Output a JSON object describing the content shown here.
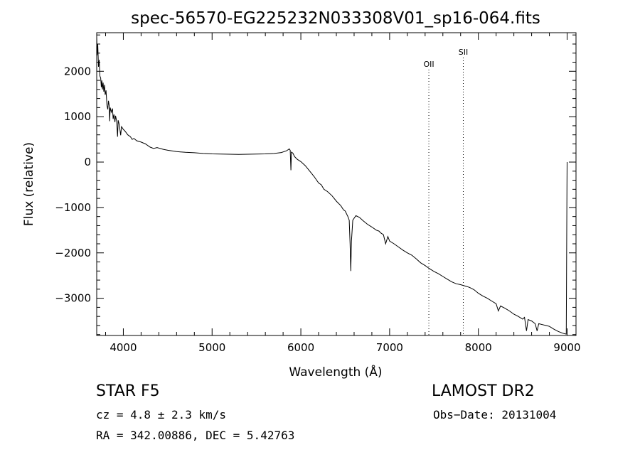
{
  "chart_data": {
    "type": "line",
    "title": "spec-56570-EG225232N033308V01_sp16-064.fits",
    "xlabel": "Wavelength (Å)",
    "ylabel": "Flux (relative)",
    "xlim": [
      3700,
      9100
    ],
    "ylim": [
      -3820,
      2850
    ],
    "xticks": [
      4000,
      5000,
      6000,
      7000,
      8000,
      9000
    ],
    "yticks": [
      -3000,
      -2000,
      -1000,
      0,
      1000,
      2000
    ],
    "xtick_labels": [
      "4000",
      "5000",
      "6000",
      "7000",
      "8000",
      "9000"
    ],
    "ytick_labels": [
      "−3000",
      "−2000",
      "−1000",
      "0",
      "1000",
      "2000"
    ],
    "grid": false,
    "line_color": "#000000",
    "series": [
      {
        "name": "",
        "points": [
          [
            3700,
            2780
          ],
          [
            3705,
            2350
          ],
          [
            3712,
            2600
          ],
          [
            3720,
            2100
          ],
          [
            3728,
            2250
          ],
          [
            3735,
            1900
          ],
          [
            3745,
            1850
          ],
          [
            3752,
            1650
          ],
          [
            3758,
            1800
          ],
          [
            3765,
            1600
          ],
          [
            3772,
            1750
          ],
          [
            3780,
            1550
          ],
          [
            3788,
            1700
          ],
          [
            3795,
            1480
          ],
          [
            3805,
            1580
          ],
          [
            3815,
            1250
          ],
          [
            3825,
            1160
          ],
          [
            3832,
            1350
          ],
          [
            3840,
            1250
          ],
          [
            3846,
            900
          ],
          [
            3852,
            1200
          ],
          [
            3865,
            1100
          ],
          [
            3878,
            1180
          ],
          [
            3885,
            950
          ],
          [
            3895,
            1050
          ],
          [
            3905,
            880
          ],
          [
            3912,
            1020
          ],
          [
            3925,
            900
          ],
          [
            3935,
            560
          ],
          [
            3942,
            920
          ],
          [
            3955,
            820
          ],
          [
            3970,
            590
          ],
          [
            3980,
            780
          ],
          [
            4000,
            720
          ],
          [
            4020,
            680
          ],
          [
            4050,
            600
          ],
          [
            4080,
            560
          ],
          [
            4100,
            500
          ],
          [
            4120,
            520
          ],
          [
            4150,
            470
          ],
          [
            4200,
            440
          ],
          [
            4250,
            400
          ],
          [
            4300,
            330
          ],
          [
            4340,
            300
          ],
          [
            4380,
            320
          ],
          [
            4450,
            280
          ],
          [
            4500,
            260
          ],
          [
            4600,
            230
          ],
          [
            4700,
            215
          ],
          [
            4800,
            205
          ],
          [
            4900,
            190
          ],
          [
            5000,
            180
          ],
          [
            5100,
            175
          ],
          [
            5200,
            172
          ],
          [
            5300,
            170
          ],
          [
            5400,
            172
          ],
          [
            5500,
            175
          ],
          [
            5600,
            180
          ],
          [
            5700,
            190
          ],
          [
            5780,
            210
          ],
          [
            5840,
            250
          ],
          [
            5870,
            290
          ],
          [
            5880,
            260
          ],
          [
            5888,
            -180
          ],
          [
            5894,
            220
          ],
          [
            5910,
            200
          ],
          [
            5930,
            120
          ],
          [
            5960,
            60
          ],
          [
            6000,
            10
          ],
          [
            6050,
            -80
          ],
          [
            6100,
            -200
          ],
          [
            6150,
            -320
          ],
          [
            6200,
            -460
          ],
          [
            6230,
            -500
          ],
          [
            6260,
            -600
          ],
          [
            6300,
            -650
          ],
          [
            6350,
            -740
          ],
          [
            6400,
            -860
          ],
          [
            6450,
            -960
          ],
          [
            6480,
            -1050
          ],
          [
            6500,
            -1080
          ],
          [
            6530,
            -1200
          ],
          [
            6545,
            -1280
          ],
          [
            6555,
            -1800
          ],
          [
            6563,
            -2400
          ],
          [
            6570,
            -1750
          ],
          [
            6585,
            -1280
          ],
          [
            6620,
            -1180
          ],
          [
            6660,
            -1220
          ],
          [
            6700,
            -1290
          ],
          [
            6750,
            -1370
          ],
          [
            6800,
            -1430
          ],
          [
            6850,
            -1500
          ],
          [
            6880,
            -1520
          ],
          [
            6900,
            -1560
          ],
          [
            6930,
            -1600
          ],
          [
            6955,
            -1800
          ],
          [
            6980,
            -1640
          ],
          [
            7000,
            -1740
          ],
          [
            7050,
            -1800
          ],
          [
            7100,
            -1870
          ],
          [
            7150,
            -1940
          ],
          [
            7200,
            -2000
          ],
          [
            7250,
            -2050
          ],
          [
            7300,
            -2130
          ],
          [
            7350,
            -2220
          ],
          [
            7400,
            -2280
          ],
          [
            7450,
            -2350
          ],
          [
            7500,
            -2410
          ],
          [
            7550,
            -2460
          ],
          [
            7600,
            -2520
          ],
          [
            7650,
            -2580
          ],
          [
            7700,
            -2640
          ],
          [
            7750,
            -2680
          ],
          [
            7800,
            -2700
          ],
          [
            7850,
            -2730
          ],
          [
            7900,
            -2760
          ],
          [
            7950,
            -2810
          ],
          [
            8000,
            -2890
          ],
          [
            8050,
            -2950
          ],
          [
            8100,
            -3000
          ],
          [
            8150,
            -3060
          ],
          [
            8200,
            -3120
          ],
          [
            8225,
            -3280
          ],
          [
            8250,
            -3170
          ],
          [
            8300,
            -3220
          ],
          [
            8350,
            -3280
          ],
          [
            8400,
            -3350
          ],
          [
            8450,
            -3400
          ],
          [
            8498,
            -3460
          ],
          [
            8520,
            -3420
          ],
          [
            8542,
            -3720
          ],
          [
            8560,
            -3470
          ],
          [
            8600,
            -3500
          ],
          [
            8640,
            -3560
          ],
          [
            8662,
            -3720
          ],
          [
            8680,
            -3560
          ],
          [
            8720,
            -3580
          ],
          [
            8760,
            -3600
          ],
          [
            8800,
            -3620
          ],
          [
            8850,
            -3680
          ],
          [
            8900,
            -3730
          ],
          [
            8950,
            -3770
          ],
          [
            8990,
            -3790
          ],
          [
            8998,
            -500
          ],
          [
            9000,
            0
          ]
        ]
      }
    ],
    "annotations": [
      {
        "text": "OII",
        "x": 7442
      },
      {
        "text": "SII",
        "x": 7830
      }
    ]
  },
  "footer": {
    "class_text": "STAR    F5",
    "cz_text": "cz = 4.8 ± 2.3 km/s",
    "radec_text": "RA = 342.00886, DEC =   5.42763",
    "survey_text": "LAMOST DR2",
    "obsdate_text": "Obs−Date: 20131004"
  }
}
